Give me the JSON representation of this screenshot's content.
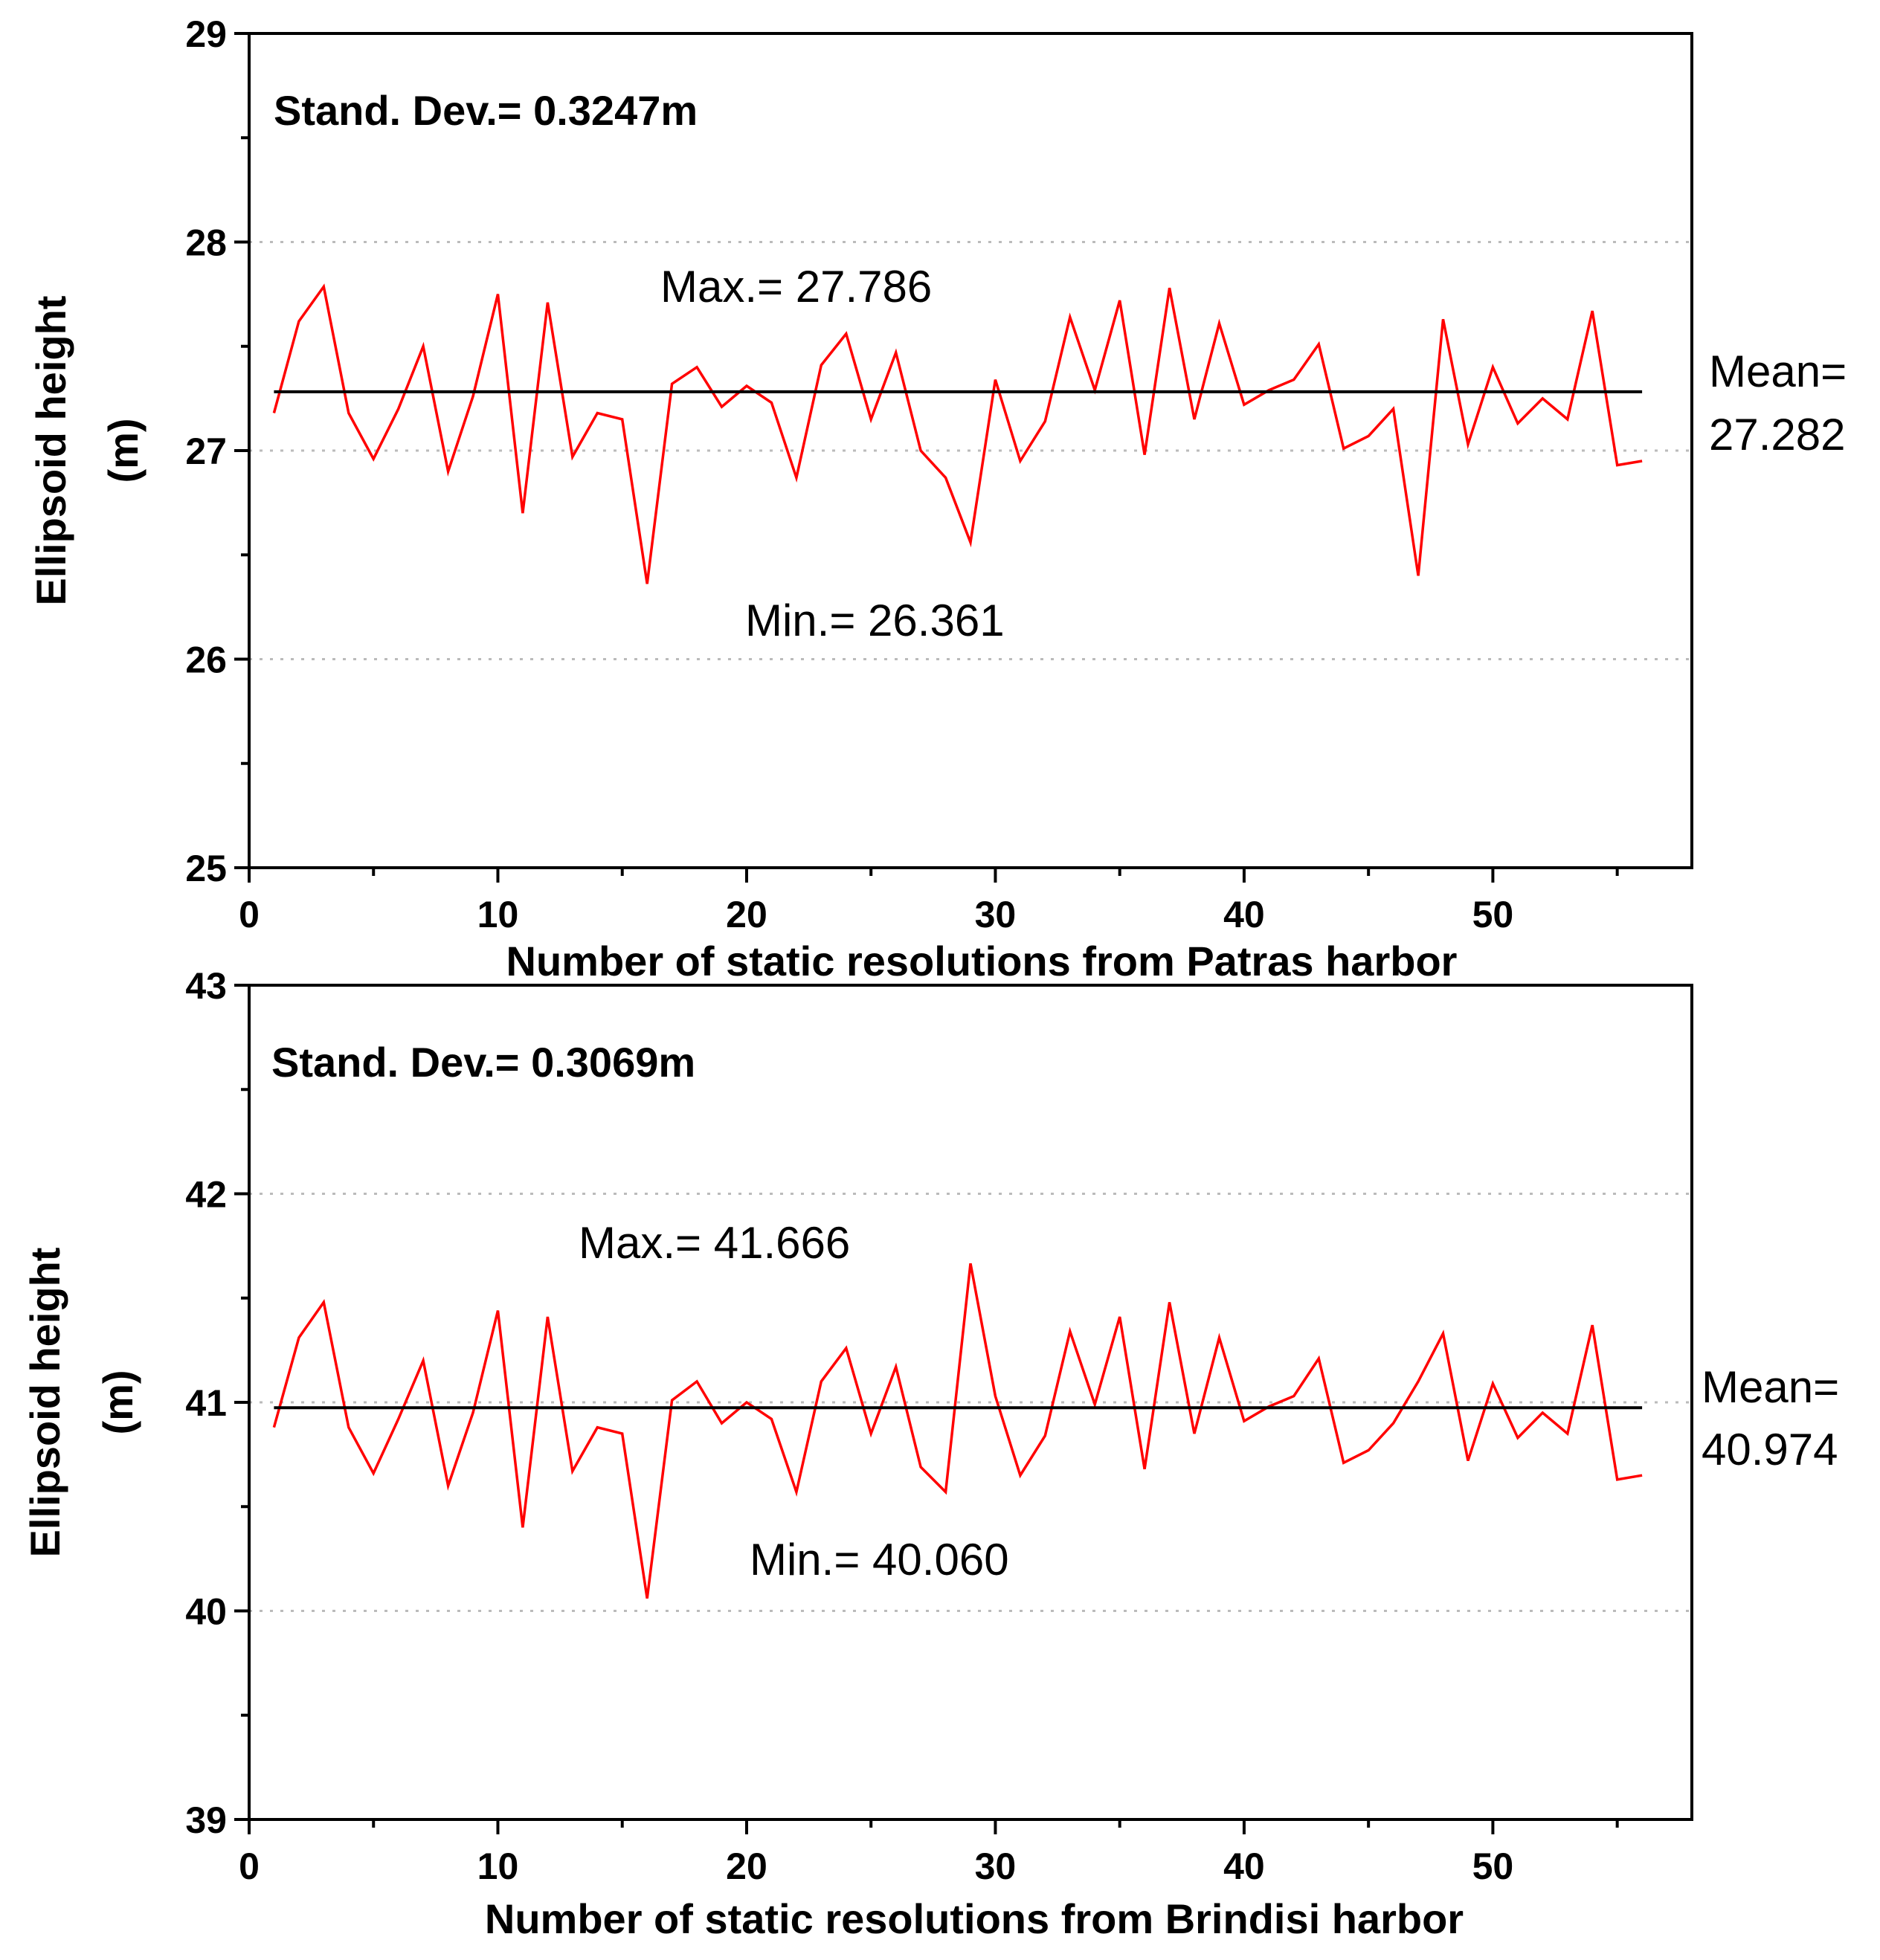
{
  "chart_data": [
    {
      "type": "line",
      "title": "",
      "xlabel": "Number of static resolutions from Patras harbor",
      "ylabel": "Ellipsoid height (m)",
      "ylabel_lines": [
        "Ellipsoid height",
        "(m)"
      ],
      "xlim": [
        0,
        58
      ],
      "ylim": [
        25,
        29
      ],
      "xticks": [
        0,
        10,
        20,
        30,
        40,
        50
      ],
      "yticks": [
        25,
        26,
        27,
        28,
        29
      ],
      "grid_y": [
        26,
        27,
        28
      ],
      "series": [
        {
          "name": "Ellipsoid height",
          "color": "#ff0000",
          "x": [
            1,
            2,
            3,
            4,
            5,
            6,
            7,
            8,
            9,
            10,
            11,
            12,
            13,
            14,
            15,
            16,
            17,
            18,
            19,
            20,
            21,
            22,
            23,
            24,
            25,
            26,
            27,
            28,
            29,
            30,
            31,
            32,
            33,
            34,
            35,
            36,
            37,
            38,
            39,
            40,
            41,
            42,
            43,
            44,
            45,
            46,
            47,
            48,
            49,
            50,
            51,
            52,
            53,
            54,
            55,
            56
          ],
          "values": [
            27.18,
            27.62,
            27.786,
            27.18,
            26.96,
            27.2,
            27.5,
            26.9,
            27.26,
            27.75,
            26.7,
            27.71,
            26.97,
            27.18,
            27.15,
            26.361,
            27.32,
            27.4,
            27.21,
            27.31,
            27.23,
            26.87,
            27.41,
            27.56,
            27.15,
            27.47,
            27.0,
            26.87,
            26.56,
            27.34,
            26.95,
            27.14,
            27.64,
            27.29,
            27.72,
            26.98,
            27.78,
            27.15,
            27.61,
            27.22,
            27.29,
            27.34,
            27.51,
            27.01,
            27.07,
            27.2,
            26.4,
            27.63,
            27.03,
            27.4,
            27.13,
            27.25,
            27.15,
            27.67,
            26.93,
            26.95
          ]
        },
        {
          "name": "Mean",
          "color": "#000000",
          "x": [
            1,
            56
          ],
          "values": [
            27.282,
            27.282
          ]
        }
      ],
      "annotations": {
        "std_dev": "Stand. Dev.= 0.3247m",
        "max": "Max.= 27.786",
        "min": "Min.= 26.361",
        "mean_label": "Mean=",
        "mean_value": "27.282"
      }
    },
    {
      "type": "line",
      "title": "",
      "xlabel": "Number of static resolutions from Brindisi harbor",
      "ylabel": "Ellipsoid height (m)",
      "ylabel_lines": [
        "Ellipsoid height",
        "(m)"
      ],
      "xlim": [
        0,
        58
      ],
      "ylim": [
        39,
        43
      ],
      "xticks": [
        0,
        10,
        20,
        30,
        40,
        50
      ],
      "yticks": [
        39,
        40,
        41,
        42,
        43
      ],
      "grid_y": [
        40,
        41,
        42
      ],
      "series": [
        {
          "name": "Ellipsoid height",
          "color": "#ff0000",
          "x": [
            1,
            2,
            3,
            4,
            5,
            6,
            7,
            8,
            9,
            10,
            11,
            12,
            13,
            14,
            15,
            16,
            17,
            18,
            19,
            20,
            21,
            22,
            23,
            24,
            25,
            26,
            27,
            28,
            29,
            30,
            31,
            32,
            33,
            34,
            35,
            36,
            37,
            38,
            39,
            40,
            41,
            42,
            43,
            44,
            45,
            46,
            47,
            48,
            49,
            50,
            51,
            52,
            53,
            54,
            55,
            56
          ],
          "values": [
            40.88,
            41.31,
            41.48,
            40.88,
            40.66,
            40.92,
            41.2,
            40.6,
            40.95,
            41.44,
            40.4,
            41.41,
            40.67,
            40.88,
            40.85,
            40.06,
            41.01,
            41.1,
            40.9,
            41.0,
            40.92,
            40.57,
            41.1,
            41.26,
            40.85,
            41.17,
            40.69,
            40.57,
            41.666,
            41.03,
            40.65,
            40.84,
            41.34,
            40.99,
            41.41,
            40.68,
            41.48,
            40.85,
            41.31,
            40.91,
            40.98,
            41.03,
            41.21,
            40.71,
            40.77,
            40.9,
            41.1,
            41.33,
            40.72,
            41.09,
            40.83,
            40.95,
            40.85,
            41.37,
            40.63,
            40.65
          ]
        },
        {
          "name": "Mean",
          "color": "#000000",
          "x": [
            1,
            56
          ],
          "values": [
            40.974,
            40.974
          ]
        }
      ],
      "annotations": {
        "std_dev": "Stand. Dev.= 0.3069m",
        "max": "Max.= 41.666",
        "min": "Min.= 40.060",
        "mean_label": "Mean=",
        "mean_value": "40.974"
      }
    }
  ]
}
